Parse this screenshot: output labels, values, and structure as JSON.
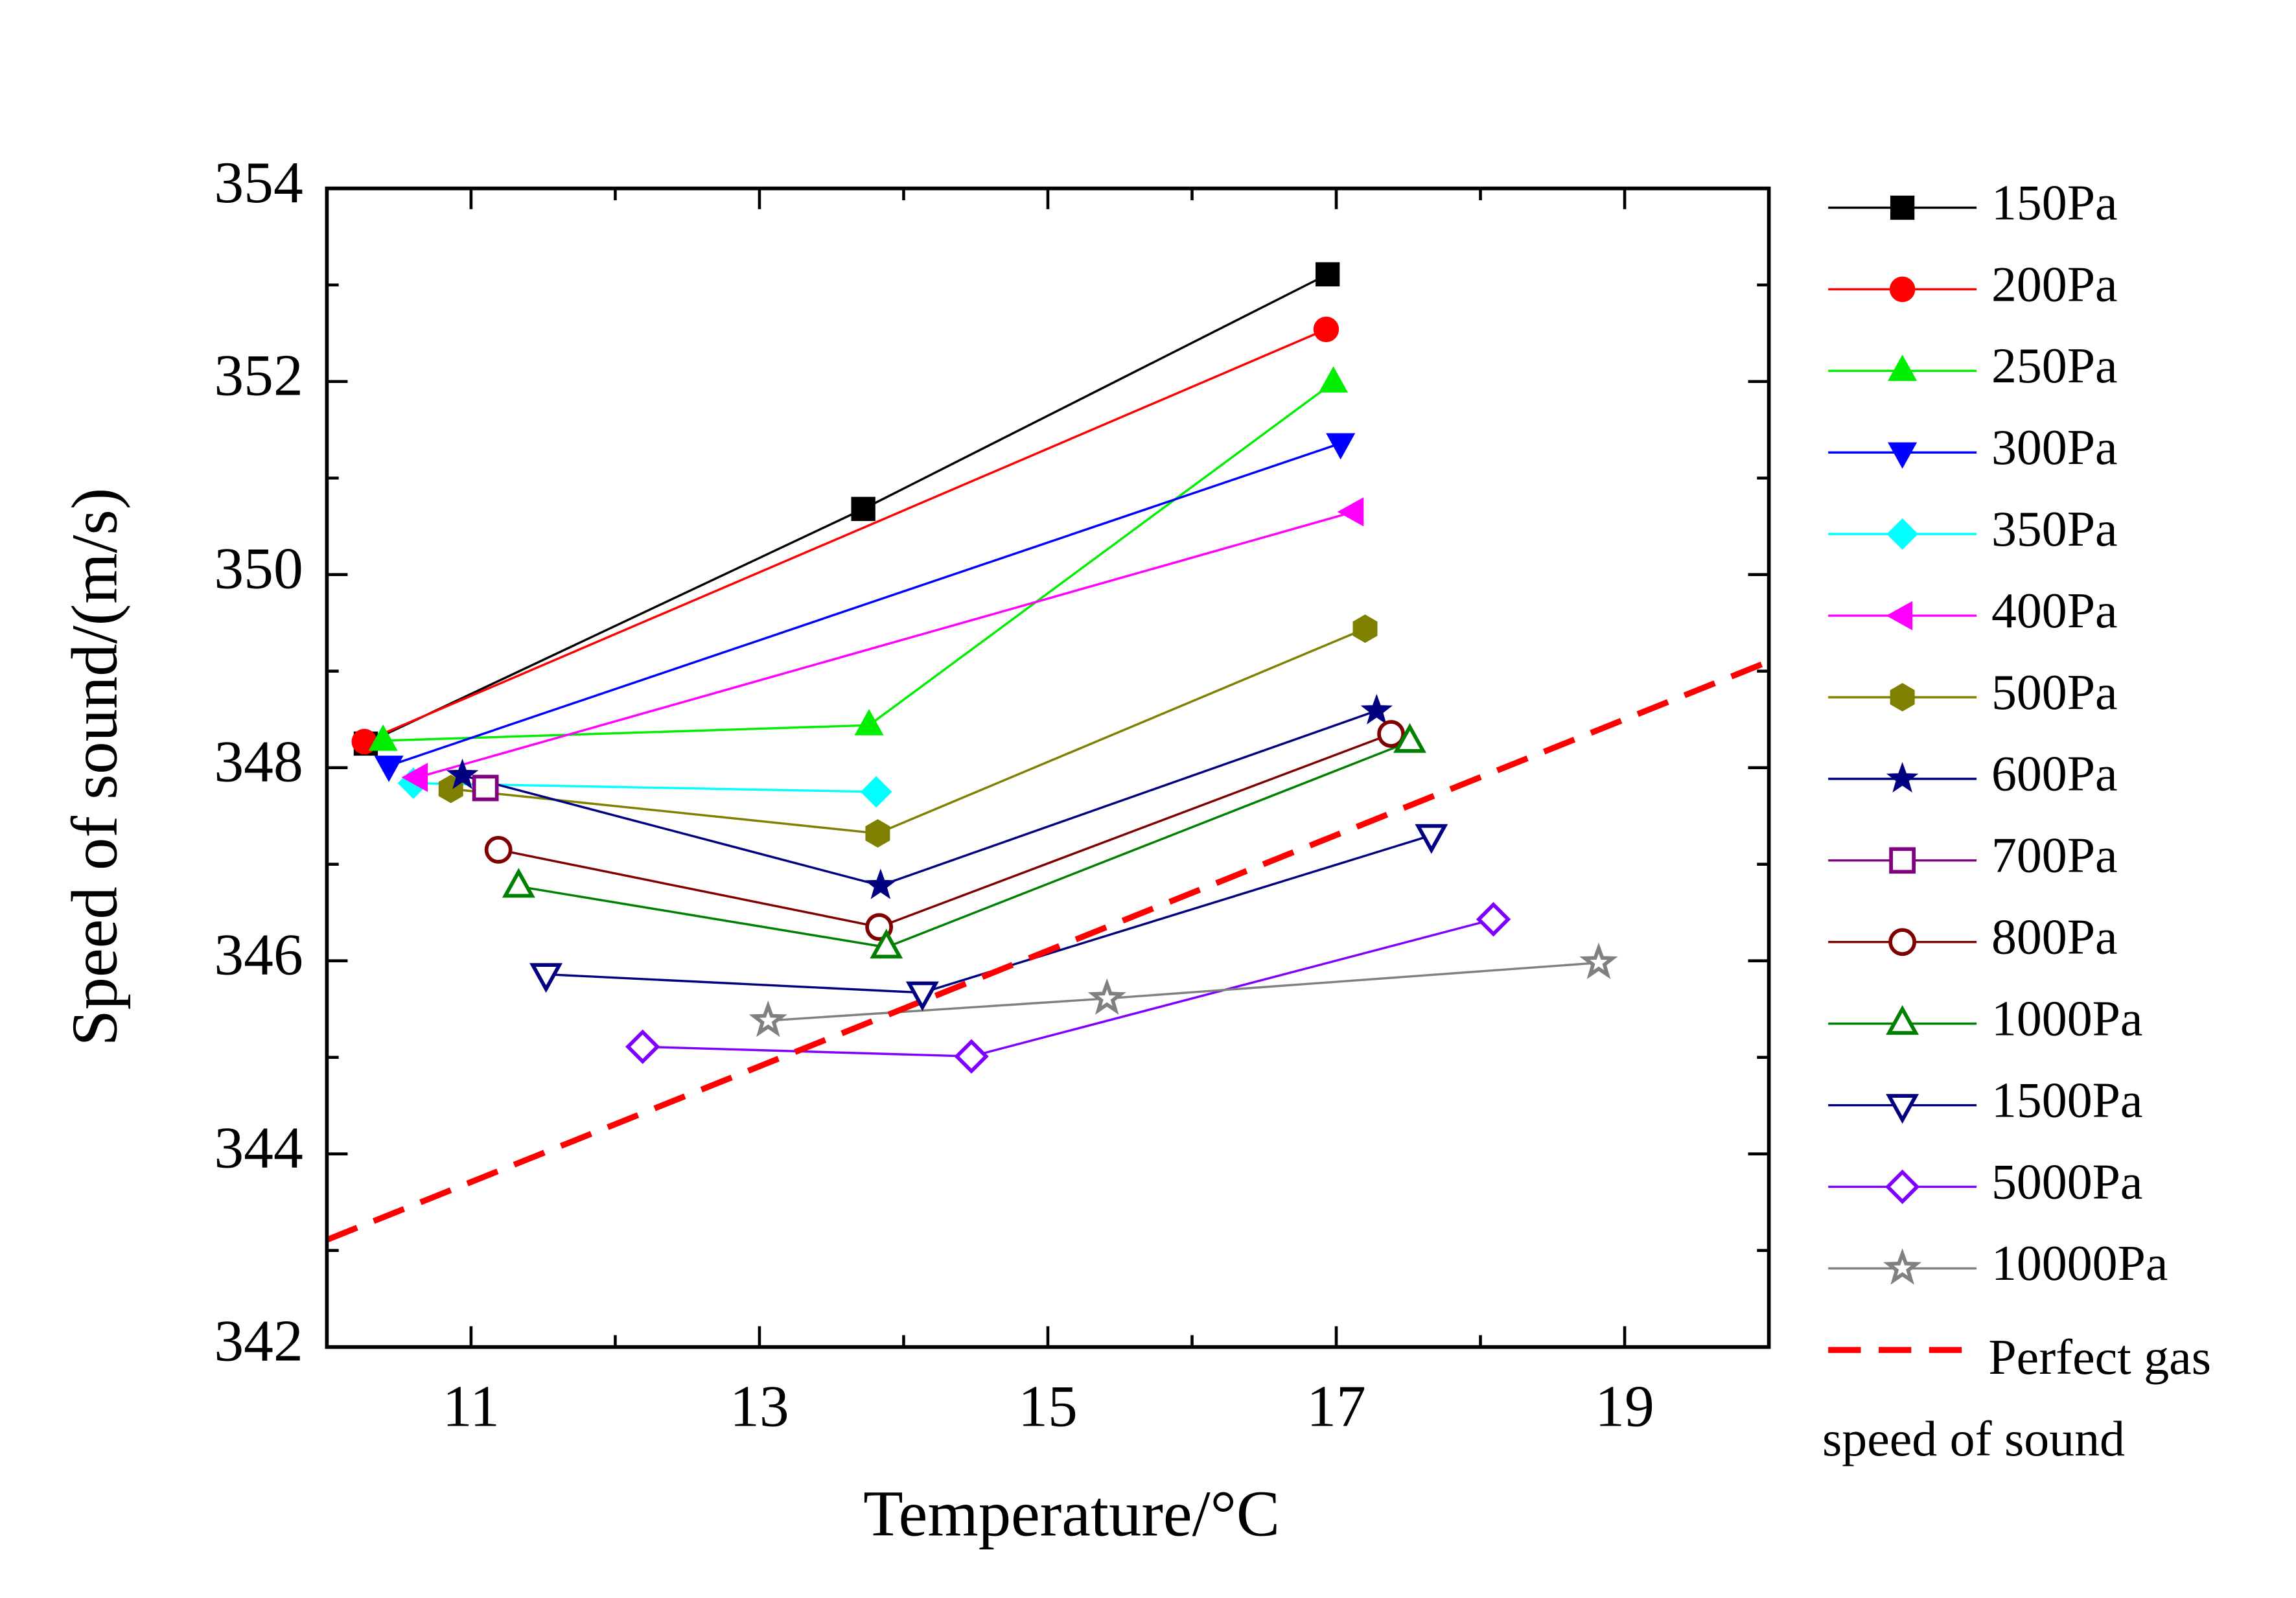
{
  "chart_data": {
    "type": "line",
    "x_label": "Temperature/°C",
    "y_label": "Speed of sound/(m/s)",
    "xlim": [
      10,
      20
    ],
    "ylim": [
      342,
      354
    ],
    "xticks": [
      11,
      13,
      15,
      17,
      19
    ],
    "yticks": [
      342,
      344,
      346,
      348,
      350,
      352,
      354
    ],
    "series": [
      {
        "name": "150Pa",
        "color": "#000000",
        "marker": "square",
        "filled": true,
        "x": [
          10.27,
          13.72,
          16.94
        ],
        "values": [
          348.25,
          350.68,
          353.11
        ]
      },
      {
        "name": "200Pa",
        "color": "#ff0000",
        "marker": "circle",
        "filled": true,
        "x": [
          10.26,
          16.93
        ],
        "values": [
          348.27,
          352.54
        ]
      },
      {
        "name": "250Pa",
        "color": "#00ee00",
        "marker": "triangle-up",
        "filled": true,
        "x": [
          10.39,
          13.76,
          16.98
        ],
        "values": [
          348.28,
          348.44,
          351.99
        ]
      },
      {
        "name": "300Pa",
        "color": "#0000ff",
        "marker": "triangle-down",
        "filled": true,
        "x": [
          10.43,
          17.03
        ],
        "values": [
          348.02,
          351.36
        ]
      },
      {
        "name": "350Pa",
        "color": "#00ffff",
        "marker": "diamond",
        "filled": true,
        "x": [
          10.6,
          13.81
        ],
        "values": [
          347.84,
          347.75
        ]
      },
      {
        "name": "400Pa",
        "color": "#ff00ff",
        "marker": "triangle-left",
        "filled": true,
        "x": [
          10.63,
          17.12
        ],
        "values": [
          347.9,
          350.65
        ]
      },
      {
        "name": "500Pa",
        "color": "#808000",
        "marker": "hexagon",
        "filled": true,
        "x": [
          10.86,
          13.82,
          17.2
        ],
        "values": [
          347.78,
          347.32,
          349.44
        ]
      },
      {
        "name": "600Pa",
        "color": "#000080",
        "marker": "star",
        "filled": true,
        "x": [
          10.94,
          13.84,
          17.28
        ],
        "values": [
          347.92,
          346.78,
          348.59
        ]
      },
      {
        "name": "700Pa",
        "color": "#800080",
        "marker": "square",
        "filled": false,
        "x": [
          11.1
        ],
        "values": [
          347.79
        ]
      },
      {
        "name": "800Pa",
        "color": "#800000",
        "marker": "circle",
        "filled": false,
        "x": [
          11.19,
          13.83,
          17.38
        ],
        "values": [
          347.15,
          346.35,
          348.35
        ]
      },
      {
        "name": "1000Pa",
        "color": "#008000",
        "marker": "triangle-up",
        "filled": false,
        "x": [
          11.33,
          13.88,
          17.51
        ],
        "values": [
          346.77,
          346.14,
          348.27
        ]
      },
      {
        "name": "1500Pa",
        "color": "#000080",
        "marker": "triangle-down",
        "filled": false,
        "x": [
          11.52,
          14.13,
          17.66
        ],
        "values": [
          345.86,
          345.67,
          347.3
        ]
      },
      {
        "name": "5000Pa",
        "color": "#8000ff",
        "marker": "diamond",
        "filled": false,
        "x": [
          12.19,
          14.47,
          18.09
        ],
        "values": [
          345.11,
          345.01,
          346.43
        ]
      },
      {
        "name": "10000Pa",
        "color": "#808080",
        "marker": "star",
        "filled": false,
        "x": [
          13.06,
          15.41,
          18.82
        ],
        "values": [
          345.38,
          345.61,
          345.98
        ]
      },
      {
        "name": "Perfect gas speed of sound",
        "color": "#ff0000",
        "marker": "none",
        "dashed": true,
        "x": [
          10,
          20
        ],
        "values": [
          343.11,
          349.1
        ]
      }
    ]
  }
}
